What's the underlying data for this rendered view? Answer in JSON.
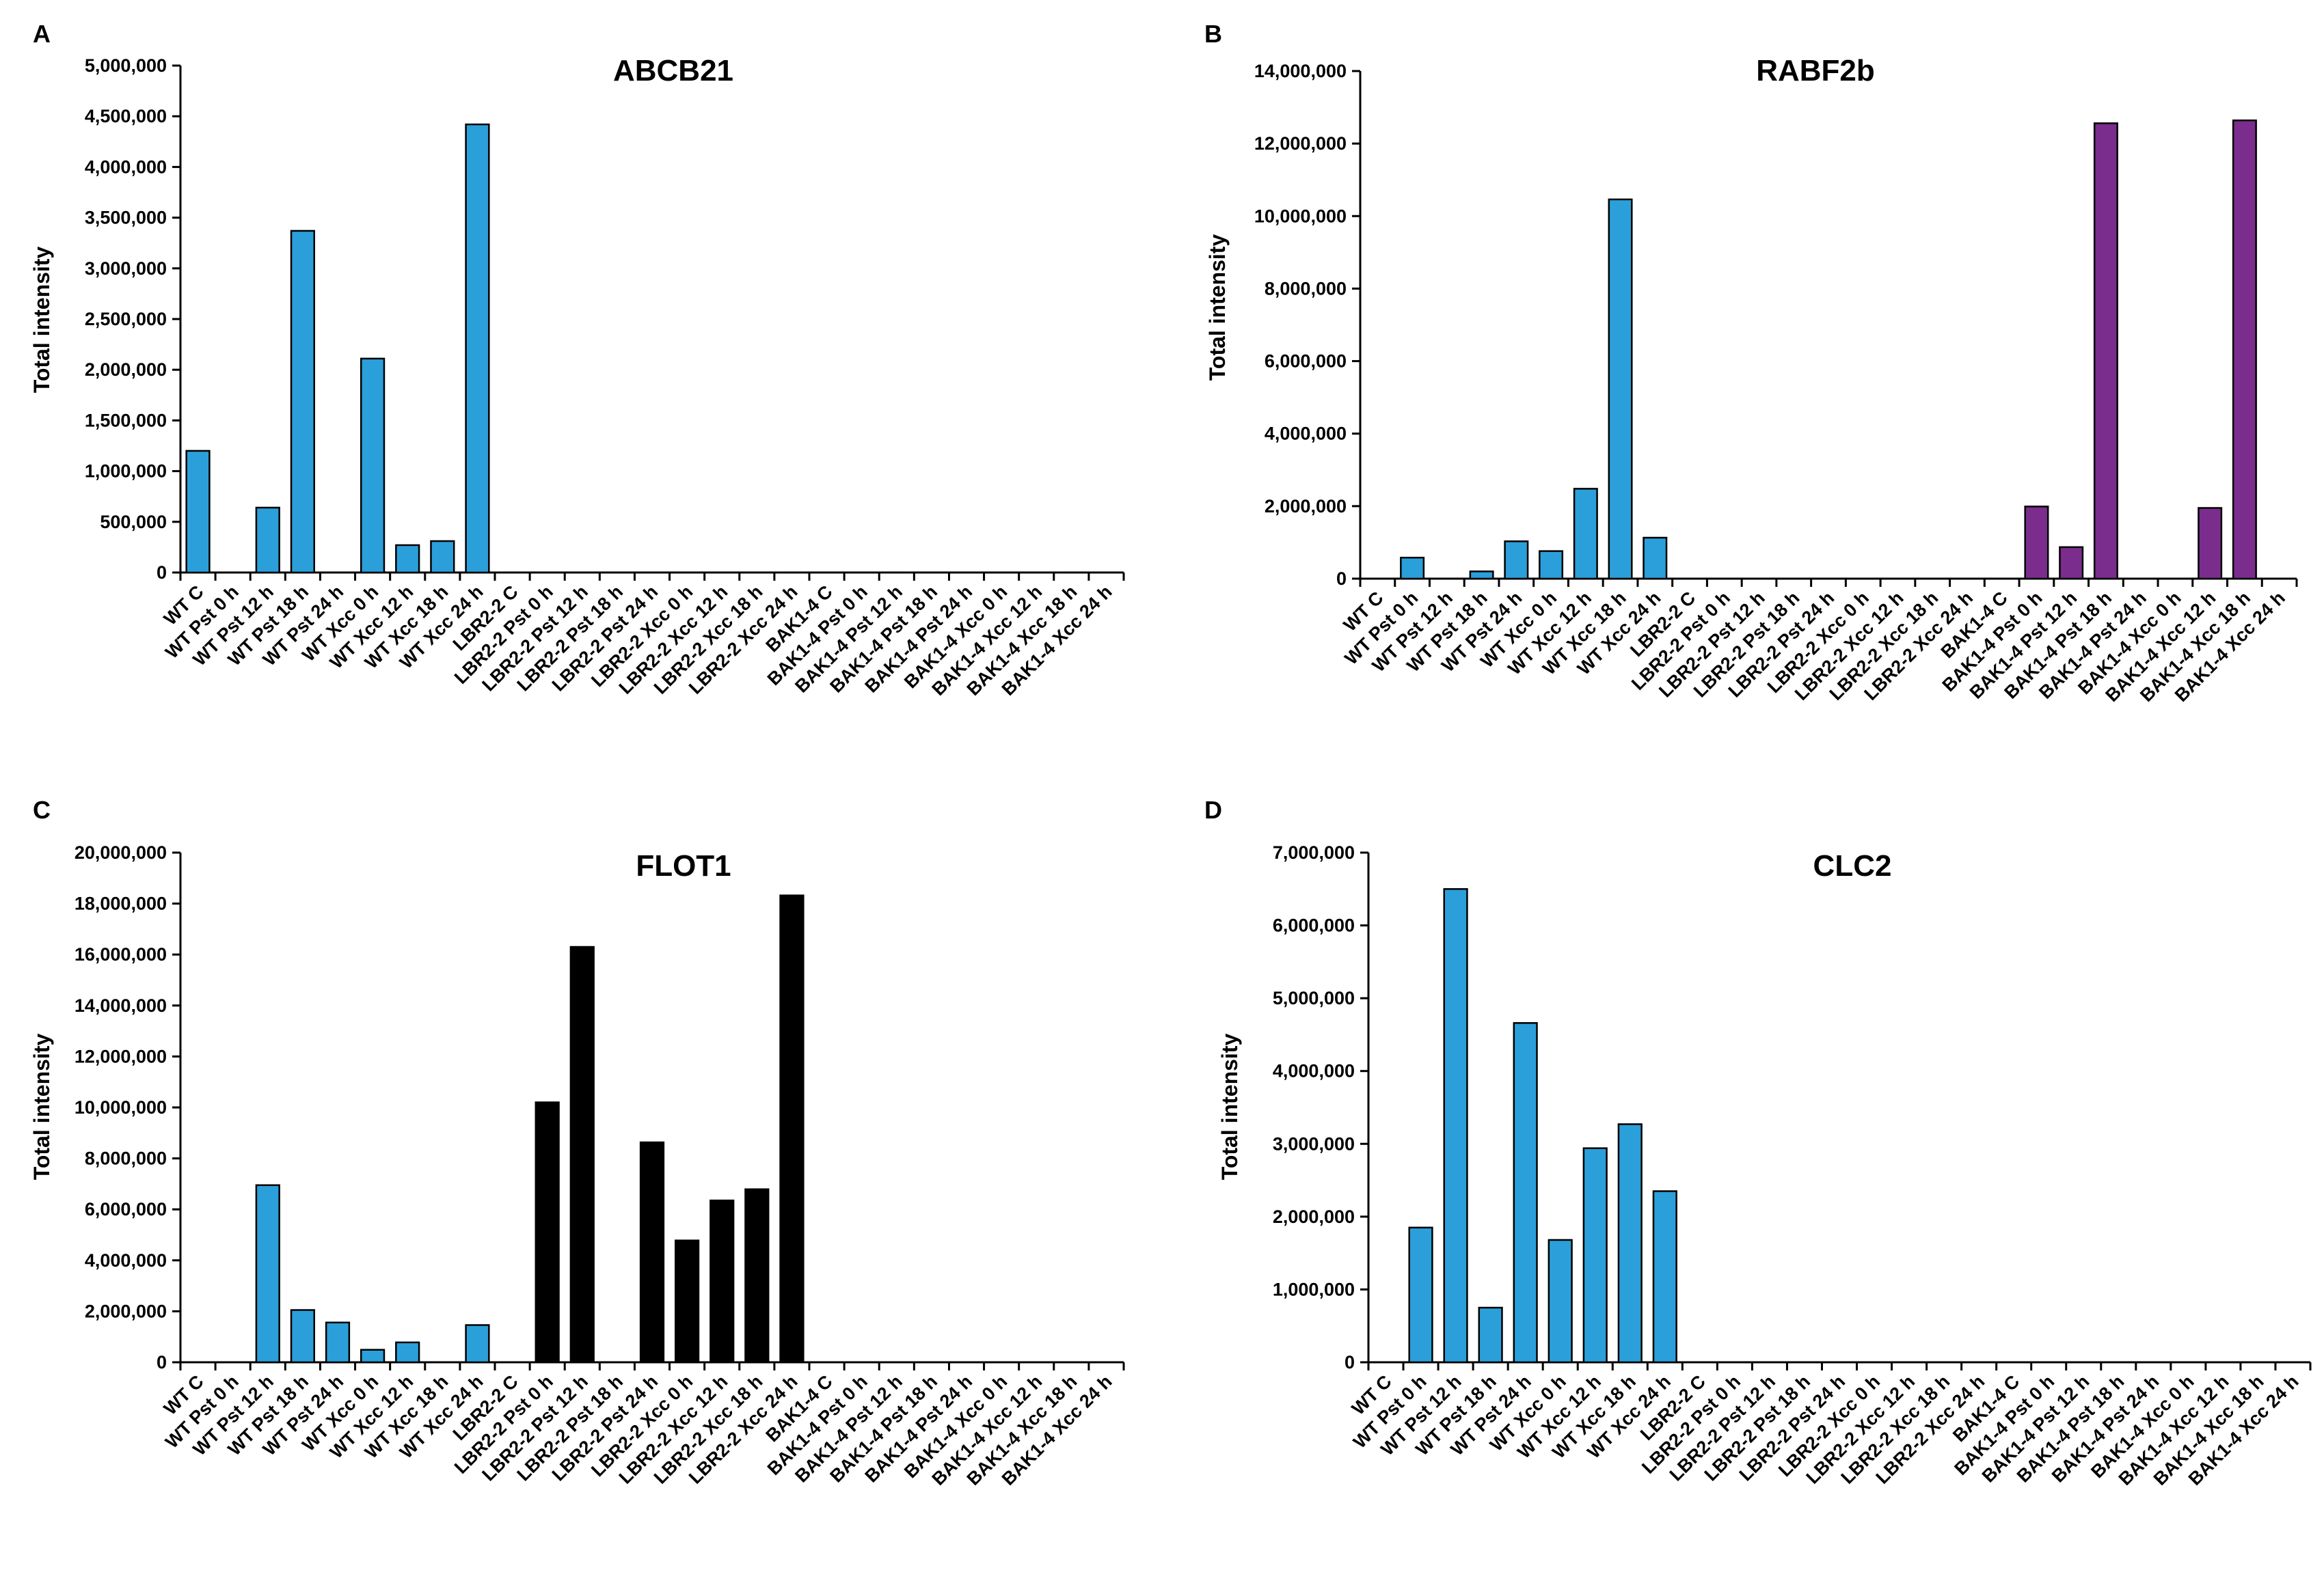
{
  "chart_data": [
    {
      "panel": "A",
      "type": "bar",
      "title": "ABCB21",
      "ylabel": "Total intensity",
      "xlabel": "",
      "ylim": [
        0,
        5000000
      ],
      "yticks": [
        "0",
        "500,000",
        "1,000,000",
        "1,500,000",
        "2,000,000",
        "2,500,000",
        "3,000,000",
        "3,500,000",
        "4,000,000",
        "4,500,000",
        "5,000,000"
      ],
      "categories": [
        "WT C",
        "WT Pst 0 h",
        "WT Pst 12 h",
        "WT Pst 18 h",
        "WT Pst 24 h",
        "WT Xcc 0 h",
        "WT Xcc 12 h",
        "WT Xcc 18 h",
        "WT Xcc 24 h",
        "LBR2-2 C",
        "LBR2-2 Pst 0 h",
        "LBR2-2 Pst 12 h",
        "LBR2-2 Pst 18 h",
        "LBR2-2 Pst 24 h",
        "LBR2-2 Xcc 0 h",
        "LBR2-2 Xcc 12 h",
        "LBR2-2 Xcc 18 h",
        "LBR2-2 Xcc 24 h",
        "BAK1-4 C",
        "BAK1-4 Pst 0 h",
        "BAK1-4 Pst 12 h",
        "BAK1-4 Pst 18 h",
        "BAK1-4 Pst 24 h",
        "BAK1-4 Xcc 0 h",
        "BAK1-4 Xcc 12 h",
        "BAK1-4 Xcc 18 h",
        "BAK1-4 Xcc 24 h"
      ],
      "values": [
        1200000,
        0,
        640000,
        3370000,
        0,
        2110000,
        270000,
        310000,
        4420000,
        0,
        0,
        0,
        0,
        0,
        0,
        0,
        0,
        0,
        0,
        0,
        0,
        0,
        0,
        0,
        0,
        0,
        0
      ],
      "colors": [
        "#2b9fd9",
        "#2b9fd9",
        "#2b9fd9",
        "#2b9fd9",
        "#2b9fd9",
        "#2b9fd9",
        "#2b9fd9",
        "#2b9fd9",
        "#2b9fd9",
        "#2b9fd9",
        "#2b9fd9",
        "#2b9fd9",
        "#2b9fd9",
        "#2b9fd9",
        "#2b9fd9",
        "#2b9fd9",
        "#2b9fd9",
        "#2b9fd9",
        "#2b9fd9",
        "#2b9fd9",
        "#2b9fd9",
        "#2b9fd9",
        "#2b9fd9",
        "#2b9fd9",
        "#2b9fd9",
        "#2b9fd9",
        "#2b9fd9"
      ]
    },
    {
      "panel": "B",
      "type": "bar",
      "title": "RABF2b",
      "ylabel": "Total intensity",
      "xlabel": "",
      "ylim": [
        0,
        14000000
      ],
      "yticks": [
        "0",
        "2,000,000",
        "4,000,000",
        "6,000,000",
        "8,000,000",
        "10,000,000",
        "12,000,000",
        "14,000,000"
      ],
      "categories": [
        "WT C",
        "WT Pst 0 h",
        "WT Pst 12 h",
        "WT Pst 18 h",
        "WT Pst 24 h",
        "WT Xcc 0 h",
        "WT Xcc 12 h",
        "WT Xcc 18 h",
        "WT Xcc 24 h",
        "LBR2-2 C",
        "LBR2-2 Pst 0 h",
        "LBR2-2 Pst 12 h",
        "LBR2-2 Pst 18 h",
        "LBR2-2 Pst 24 h",
        "LBR2-2 Xcc 0 h",
        "LBR2-2 Xcc 12 h",
        "LBR2-2 Xcc 18 h",
        "LBR2-2 Xcc 24 h",
        "BAK1-4 C",
        "BAK1-4 Pst 0 h",
        "BAK1-4 Pst 12 h",
        "BAK1-4 Pst 18 h",
        "BAK1-4 Pst 24 h",
        "BAK1-4 Xcc 0 h",
        "BAK1-4 Xcc 12 h",
        "BAK1-4 Xcc 18 h",
        "BAK1-4 Xcc 24 h"
      ],
      "values": [
        0,
        580000,
        0,
        200000,
        1030000,
        760000,
        2480000,
        10460000,
        1130000,
        0,
        0,
        0,
        0,
        0,
        0,
        0,
        0,
        0,
        0,
        1990000,
        870000,
        12560000,
        0,
        0,
        1950000,
        12640000,
        0
      ],
      "colors": [
        "#2b9fd9",
        "#2b9fd9",
        "#2b9fd9",
        "#2b9fd9",
        "#2b9fd9",
        "#2b9fd9",
        "#2b9fd9",
        "#2b9fd9",
        "#2b9fd9",
        "#2b9fd9",
        "#2b9fd9",
        "#2b9fd9",
        "#2b9fd9",
        "#2b9fd9",
        "#2b9fd9",
        "#2b9fd9",
        "#2b9fd9",
        "#2b9fd9",
        "#7b2d8e",
        "#7b2d8e",
        "#7b2d8e",
        "#7b2d8e",
        "#7b2d8e",
        "#7b2d8e",
        "#7b2d8e",
        "#7b2d8e",
        "#7b2d8e"
      ]
    },
    {
      "panel": "C",
      "type": "bar",
      "title": "FLOT1",
      "ylabel": "Total intensity",
      "xlabel": "",
      "ylim": [
        0,
        20000000
      ],
      "yticks": [
        "0",
        "2,000,000",
        "4,000,000",
        "6,000,000",
        "8,000,000",
        "10,000,000",
        "12,000,000",
        "14,000,000",
        "16,000,000",
        "18,000,000",
        "20,000,000"
      ],
      "categories": [
        "WT C",
        "WT Pst 0 h",
        "WT Pst 12 h",
        "WT Pst 18 h",
        "WT Pst 24 h",
        "WT Xcc 0 h",
        "WT Xcc 12 h",
        "WT Xcc 18 h",
        "WT Xcc 24 h",
        "LBR2-2 C",
        "LBR2-2 Pst 0 h",
        "LBR2-2 Pst 12 h",
        "LBR2-2 Pst 18 h",
        "LBR2-2 Pst 24 h",
        "LBR2-2 Xcc 0 h",
        "LBR2-2 Xcc 12 h",
        "LBR2-2 Xcc 18 h",
        "LBR2-2 Xcc 24 h",
        "BAK1-4 C",
        "BAK1-4 Pst 0 h",
        "BAK1-4 Pst 12 h",
        "BAK1-4 Pst 18 h",
        "BAK1-4 Pst 24 h",
        "BAK1-4 Xcc 0 h",
        "BAK1-4 Xcc 12 h",
        "BAK1-4 Xcc 18 h",
        "BAK1-4 Xcc 24 h"
      ],
      "values": [
        0,
        0,
        6950000,
        2050000,
        1560000,
        490000,
        780000,
        0,
        1460000,
        0,
        10200000,
        16300000,
        0,
        8630000,
        4780000,
        6350000,
        6790000,
        18320000,
        0,
        0,
        0,
        0,
        0,
        0,
        0,
        0,
        0
      ],
      "colors": [
        "#2b9fd9",
        "#2b9fd9",
        "#2b9fd9",
        "#2b9fd9",
        "#2b9fd9",
        "#2b9fd9",
        "#2b9fd9",
        "#2b9fd9",
        "#2b9fd9",
        "#000000",
        "#000000",
        "#000000",
        "#000000",
        "#000000",
        "#000000",
        "#000000",
        "#000000",
        "#000000",
        "#2b9fd9",
        "#2b9fd9",
        "#2b9fd9",
        "#2b9fd9",
        "#2b9fd9",
        "#2b9fd9",
        "#2b9fd9",
        "#2b9fd9",
        "#2b9fd9"
      ]
    },
    {
      "panel": "D",
      "type": "bar",
      "title": "CLC2",
      "ylabel": "Total intensity",
      "xlabel": "",
      "ylim": [
        0,
        7000000
      ],
      "yticks": [
        "0",
        "1,000,000",
        "2,000,000",
        "3,000,000",
        "4,000,000",
        "5,000,000",
        "6,000,000",
        "7,000,000"
      ],
      "categories": [
        "WT C",
        "WT Pst 0 h",
        "WT Pst 12 h",
        "WT Pst 18 h",
        "WT Pst 24 h",
        "WT Xcc 0 h",
        "WT Xcc 12 h",
        "WT Xcc 18 h",
        "WT Xcc 24 h",
        "LBR2-2 C",
        "LBR2-2 Pst 0 h",
        "LBR2-2 Pst 12 h",
        "LBR2-2 Pst 18 h",
        "LBR2-2 Pst 24 h",
        "LBR2-2 Xcc 0 h",
        "LBR2-2 Xcc 12 h",
        "LBR2-2 Xcc 18 h",
        "LBR2-2 Xcc 24 h",
        "BAK1-4 C",
        "BAK1-4 Pst 0 h",
        "BAK1-4 Pst 12 h",
        "BAK1-4 Pst 18 h",
        "BAK1-4 Pst 24 h",
        "BAK1-4 Xcc 0 h",
        "BAK1-4 Xcc 12 h",
        "BAK1-4 Xcc 18 h",
        "BAK1-4 Xcc 24 h"
      ],
      "values": [
        0,
        1850000,
        6500000,
        750000,
        4660000,
        1680000,
        2940000,
        3270000,
        2350000,
        0,
        0,
        0,
        0,
        0,
        0,
        0,
        0,
        0,
        0,
        0,
        0,
        0,
        0,
        0,
        0,
        0,
        0
      ],
      "colors": [
        "#2b9fd9",
        "#2b9fd9",
        "#2b9fd9",
        "#2b9fd9",
        "#2b9fd9",
        "#2b9fd9",
        "#2b9fd9",
        "#2b9fd9",
        "#2b9fd9",
        "#2b9fd9",
        "#2b9fd9",
        "#2b9fd9",
        "#2b9fd9",
        "#2b9fd9",
        "#2b9fd9",
        "#2b9fd9",
        "#2b9fd9",
        "#2b9fd9",
        "#2b9fd9",
        "#2b9fd9",
        "#2b9fd9",
        "#2b9fd9",
        "#2b9fd9",
        "#2b9fd9",
        "#2b9fd9",
        "#2b9fd9",
        "#2b9fd9"
      ]
    }
  ]
}
